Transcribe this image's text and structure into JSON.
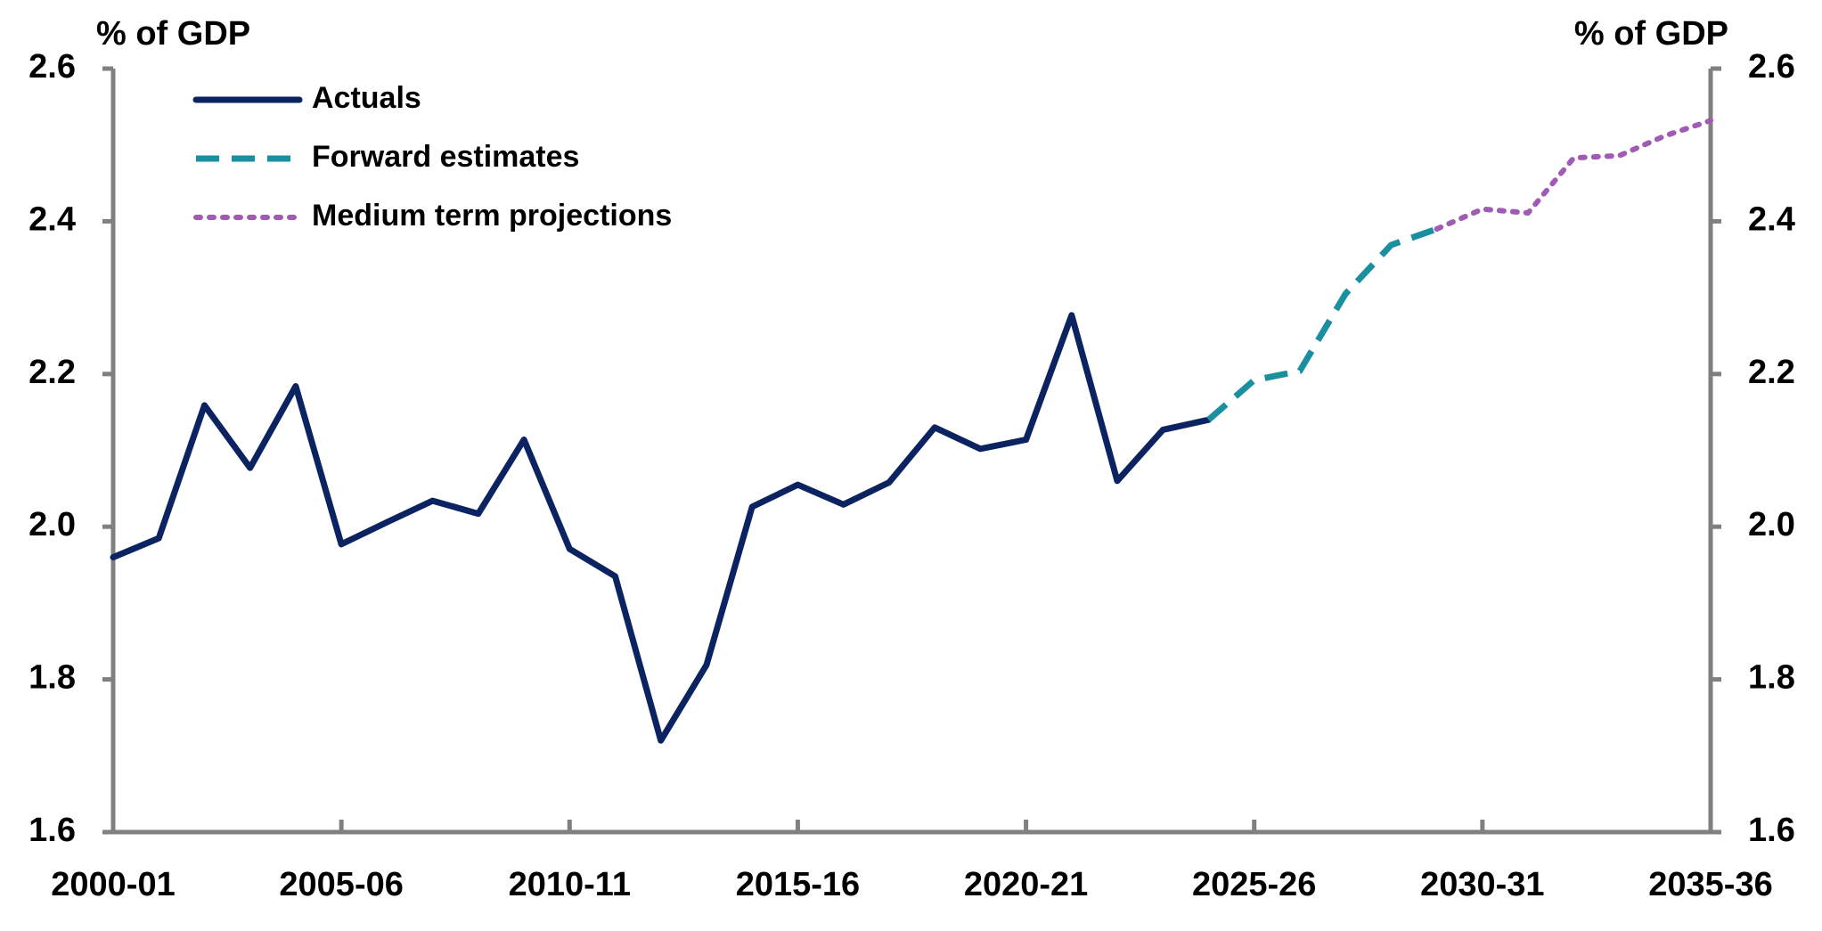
{
  "chart_data": {
    "type": "line",
    "y_label": "% of GDP",
    "y2_label": "% of GDP",
    "categories": [
      "2000-01",
      null,
      null,
      null,
      null,
      "2005-06",
      null,
      null,
      null,
      null,
      "2010-11",
      null,
      null,
      null,
      null,
      "2015-16",
      null,
      null,
      null,
      null,
      "2020-21",
      null,
      null,
      null,
      null,
      "2025-26",
      null,
      null,
      null,
      null,
      "2030-31",
      null,
      null,
      null,
      null,
      "2035-36"
    ],
    "series": [
      {
        "name": "Actuals",
        "color": "#0b2361",
        "style": "solid",
        "values": [
          1.96,
          1.985,
          2.159,
          2.077,
          2.184,
          1.977,
          2.006,
          2.034,
          2.017,
          2.114,
          1.971,
          1.935,
          1.72,
          1.819,
          2.026,
          2.055,
          2.029,
          2.058,
          2.13,
          2.102,
          2.114,
          2.277,
          2.06,
          2.127,
          2.14,
          null,
          null,
          null,
          null,
          null,
          null,
          null,
          null,
          null,
          null,
          null
        ]
      },
      {
        "name": "Forward estimates",
        "color": "#1a8fa0",
        "style": "dashed",
        "values": [
          null,
          null,
          null,
          null,
          null,
          null,
          null,
          null,
          null,
          null,
          null,
          null,
          null,
          null,
          null,
          null,
          null,
          null,
          null,
          null,
          null,
          null,
          null,
          null,
          2.14,
          2.192,
          2.204,
          2.305,
          2.369,
          2.39,
          null,
          null,
          null,
          null,
          null,
          null
        ]
      },
      {
        "name": "Medium term projections",
        "color": "#a05bb5",
        "style": "dotted",
        "values": [
          null,
          null,
          null,
          null,
          null,
          null,
          null,
          null,
          null,
          null,
          null,
          null,
          null,
          null,
          null,
          null,
          null,
          null,
          null,
          null,
          null,
          null,
          null,
          null,
          null,
          null,
          null,
          null,
          null,
          2.39,
          2.416,
          2.411,
          2.483,
          2.486,
          2.512,
          2.532
        ]
      }
    ],
    "ylim": [
      1.6,
      2.6
    ],
    "yticks": [
      1.6,
      1.8,
      {
        "value": 2,
        "label": "2.0"
      },
      2.2,
      2.4,
      2.6
    ],
    "y2lim": [
      1.6,
      2.6
    ],
    "y2ticks": [
      1.6,
      1.8,
      {
        "value": 2,
        "label": "2.0"
      },
      2.2,
      2.4,
      2.6
    ],
    "legend": "upper left",
    "grid": false
  }
}
